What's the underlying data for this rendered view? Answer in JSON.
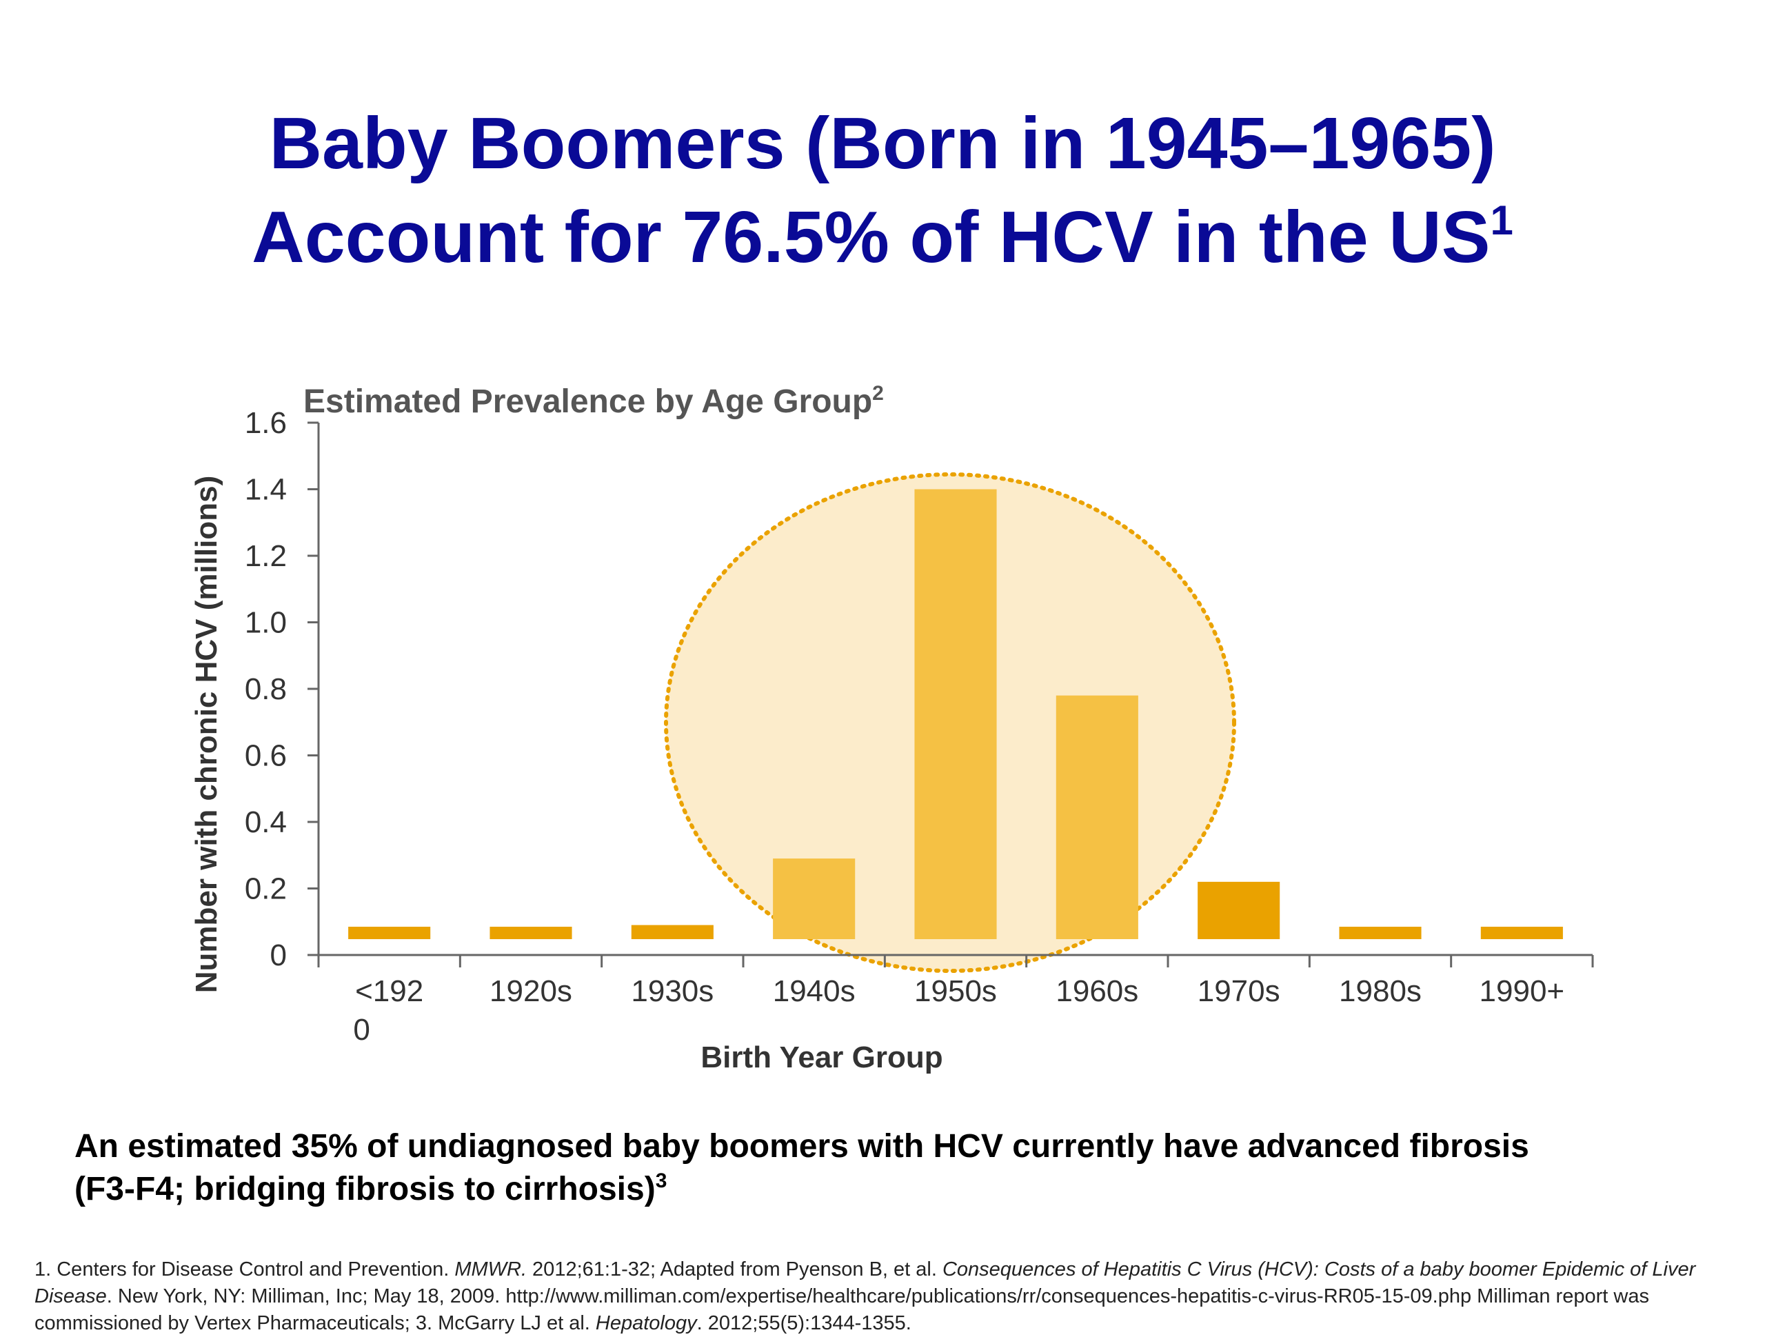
{
  "slide": {
    "title_line1": "Baby Boomers (Born in 1945–1965)",
    "title_line2": "Account for 76.5% of HCV in the US",
    "title_sup": "1"
  },
  "chart_data": {
    "type": "bar",
    "title": "Estimated Prevalence by Age Group",
    "title_sup": "2",
    "xlabel": "Birth Year Group",
    "ylabel": "Number with chronic HCV (millions)",
    "ylim": [
      0,
      1.6
    ],
    "yticks": [
      "0",
      "0.2",
      "0.4",
      "0.6",
      "0.8",
      "1.0",
      "1.2",
      "1.4",
      "1.6"
    ],
    "categories": [
      {
        "line1": "<192",
        "line2": "0"
      },
      {
        "line1": "1920s",
        "line2": ""
      },
      {
        "line1": "1930s",
        "line2": ""
      },
      {
        "line1": "1940s",
        "line2": ""
      },
      {
        "line1": "1950s",
        "line2": ""
      },
      {
        "line1": "1960s",
        "line2": ""
      },
      {
        "line1": "1970s",
        "line2": ""
      },
      {
        "line1": "1980s",
        "line2": ""
      },
      {
        "line1": "1990+",
        "line2": ""
      }
    ],
    "values": [
      0.03,
      0.035,
      0.09,
      0.29,
      1.4,
      0.78,
      0.22,
      0.03,
      0.07
    ],
    "highlight": {
      "categories": [
        "1940s",
        "1950s",
        "1960s"
      ]
    },
    "colors": {
      "bar": "#eaa200",
      "bar_highlight": "#f5c144",
      "highlight_fill": "#fceccb",
      "highlight_stroke": "#eaa200",
      "axis": "#666666"
    },
    "grid": false,
    "legend": "none"
  },
  "footnote": {
    "line1": "An estimated 35% of undiagnosed baby boomers with HCV currently have advanced fibrosis",
    "line2": "(F3-F4; bridging fibrosis to cirrhosis)",
    "sup": "3"
  },
  "references": {
    "r1_a": "1. Centers for Disease Control and Prevention. ",
    "r1_journal": "MMWR.",
    "r1_b": " 2012;61:1-32; Adapted from Pyenson B, et al. ",
    "r1_title": "Consequences of Hepatitis C Virus (HCV): Costs of a baby boomer Epidemic of Liver Disease",
    "r1_c": ". New York, NY: Milliman, Inc; May 18, 2009. http://www.milliman.com/expertise/healthcare/publications/rr/consequences-hepatitis-c-virus-RR05-15-09.php Milliman report was commissioned by Vertex Pharmaceuticals; 3. McGarry LJ et al. ",
    "r3_journal": "Hepatology",
    "r3_b": ". 2012;55(5):1344-1355."
  }
}
